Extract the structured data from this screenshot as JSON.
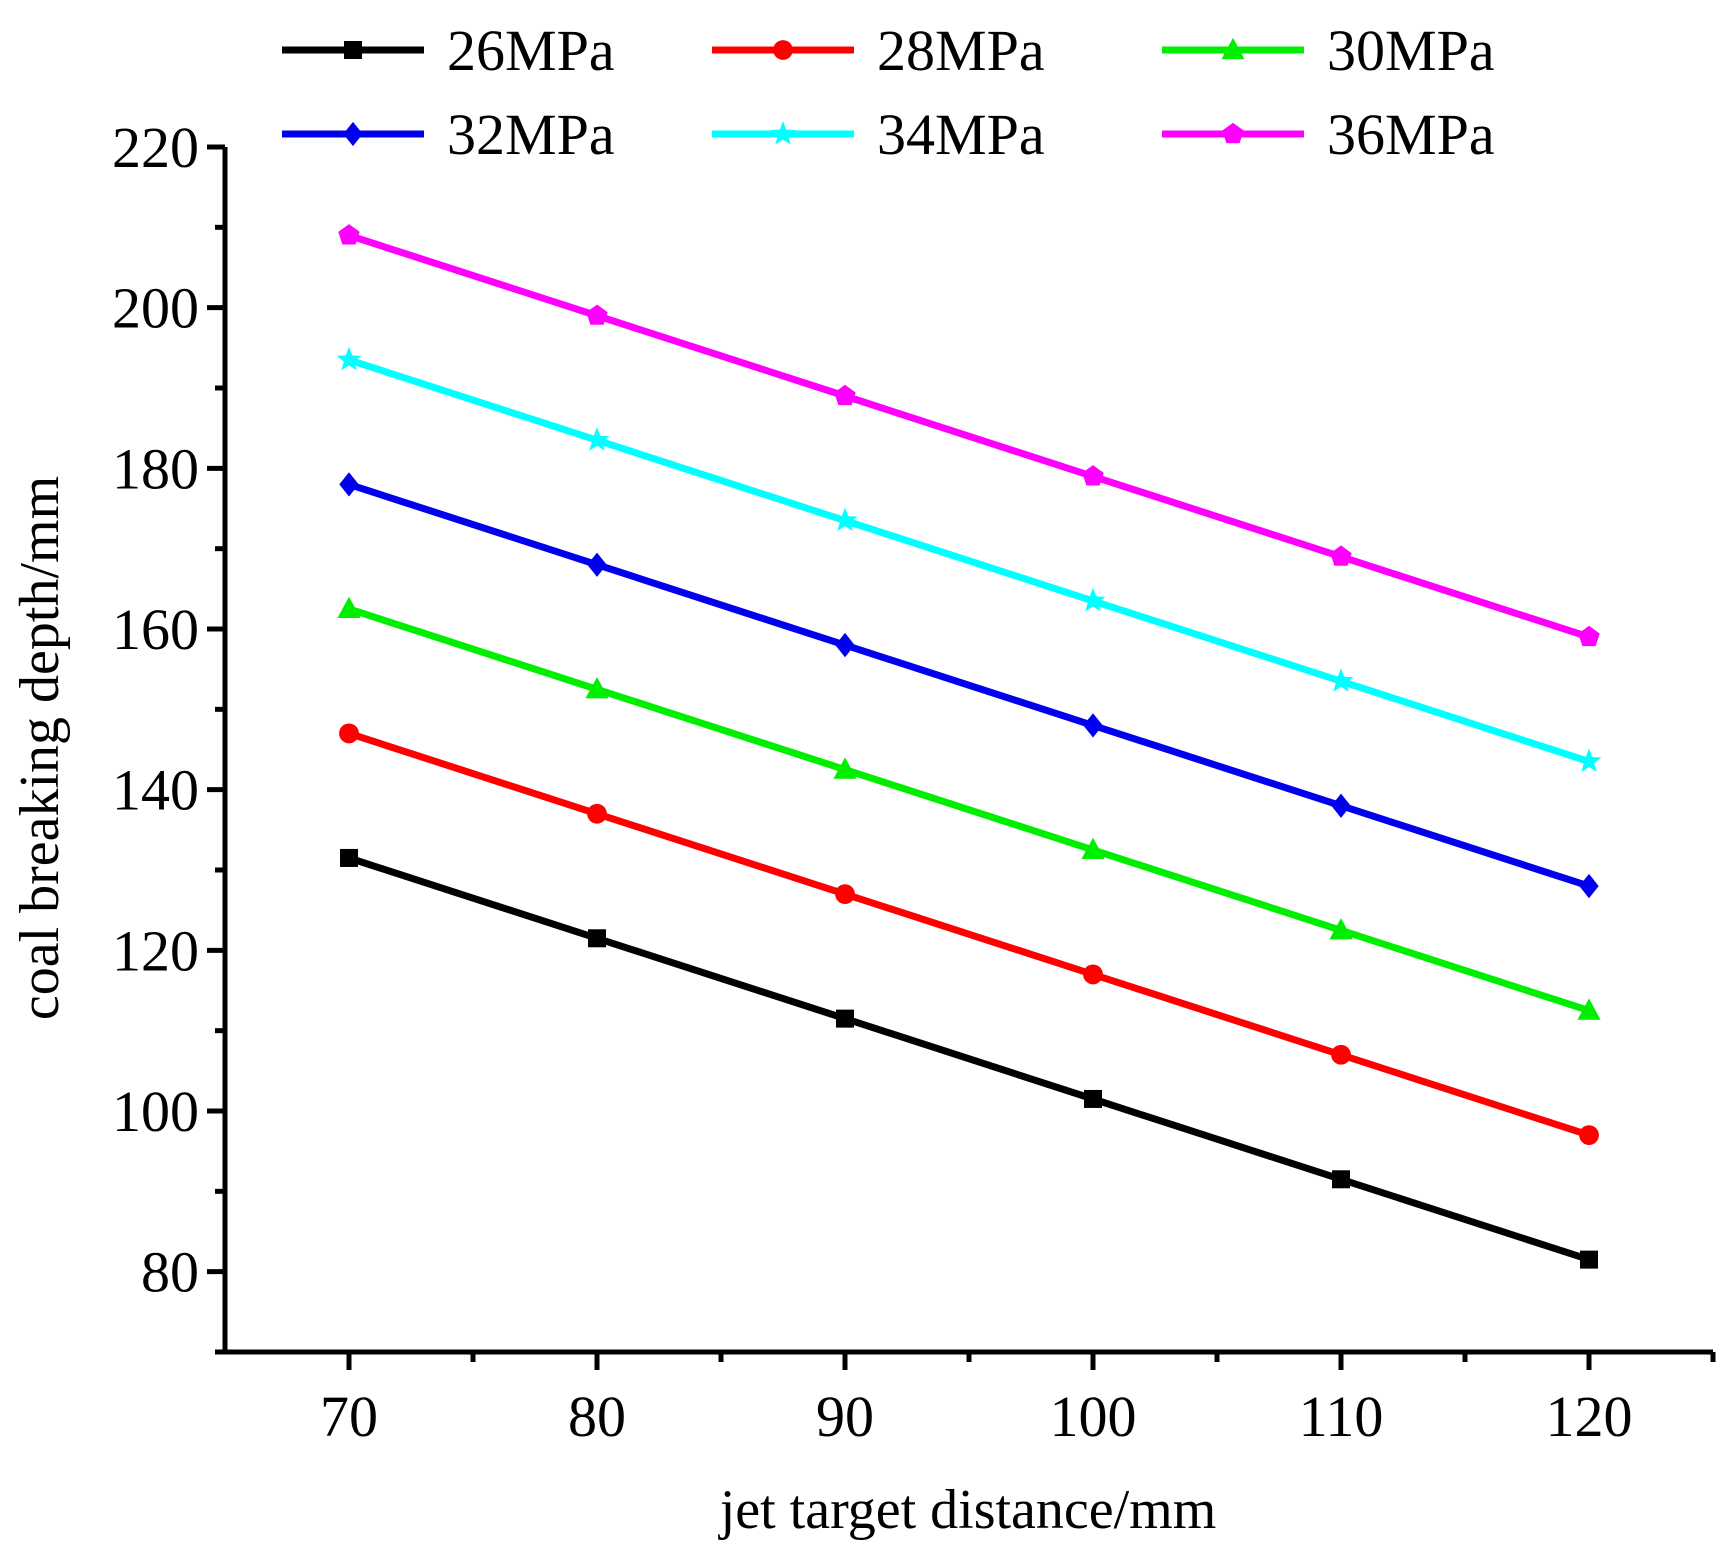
{
  "chart_data": {
    "type": "line",
    "title": "",
    "xlabel": "jet target distance/mm",
    "ylabel": "coal breaking depth/mm",
    "x": [
      70,
      80,
      90,
      100,
      110,
      120
    ],
    "xlim": [
      65,
      125
    ],
    "ylim": [
      70,
      220
    ],
    "xticks": [
      70,
      80,
      90,
      100,
      110,
      120
    ],
    "xtick_labels": [
      "70",
      "80",
      "90",
      "100",
      "110",
      "120"
    ],
    "yticks": [
      80,
      100,
      120,
      140,
      160,
      180,
      200,
      220
    ],
    "ytick_labels": [
      "80",
      "100",
      "120",
      "140",
      "160",
      "180",
      "200",
      "220"
    ],
    "legend_position": "top",
    "grid": false,
    "series": [
      {
        "name": "26MPa",
        "color": "#000000",
        "marker": "square",
        "values": [
          131.5,
          121.5,
          111.5,
          101.5,
          91.5,
          81.5
        ]
      },
      {
        "name": "28MPa",
        "color": "#ff0000",
        "marker": "circle",
        "values": [
          147,
          137,
          127,
          117,
          107,
          97
        ]
      },
      {
        "name": "30MPa",
        "color": "#00ee00",
        "marker": "triangle",
        "values": [
          162.5,
          152.5,
          142.5,
          132.5,
          122.5,
          112.5
        ]
      },
      {
        "name": "32MPa",
        "color": "#0000ee",
        "marker": "diamond",
        "values": [
          178,
          168,
          158,
          148,
          138,
          128
        ]
      },
      {
        "name": "34MPa",
        "color": "#00ffff",
        "marker": "star",
        "values": [
          193.5,
          183.5,
          173.5,
          163.5,
          153.5,
          143.5
        ]
      },
      {
        "name": "36MPa",
        "color": "#ff00ff",
        "marker": "pentagon",
        "values": [
          209,
          199,
          189,
          179,
          169,
          159
        ]
      }
    ]
  }
}
